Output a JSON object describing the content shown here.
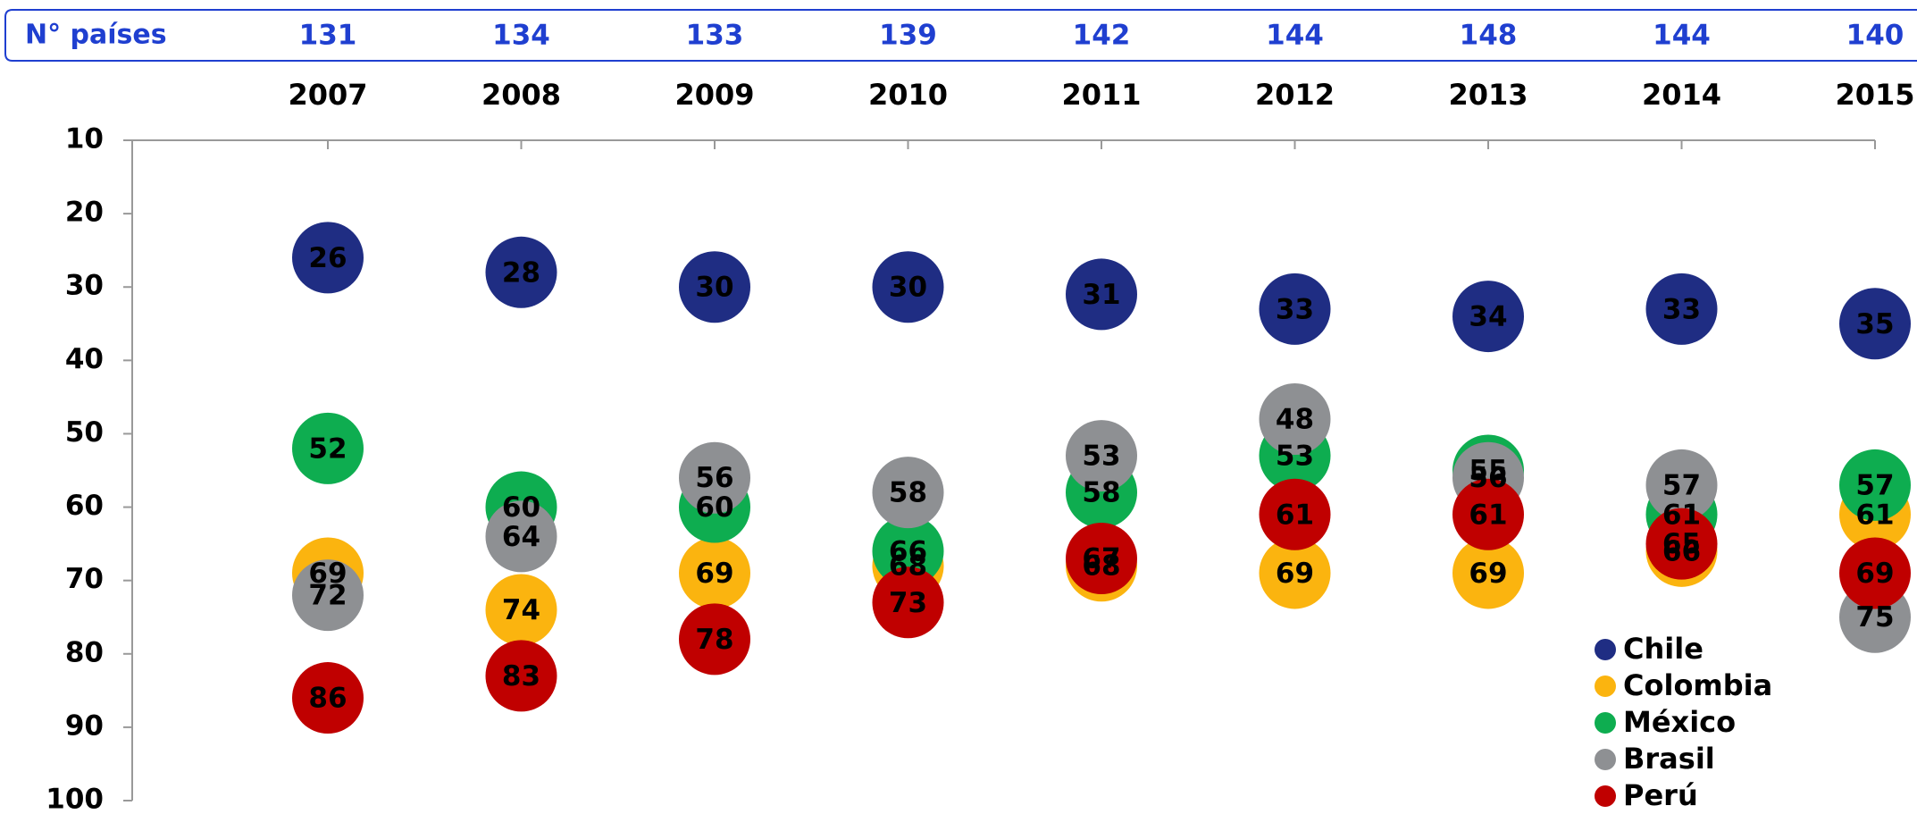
{
  "chart_data": {
    "type": "scatter",
    "count_label": "N° países",
    "counts": [
      131,
      134,
      133,
      139,
      142,
      144,
      148,
      144,
      140
    ],
    "categories": [
      "2007",
      "2008",
      "2009",
      "2010",
      "2011",
      "2012",
      "2013",
      "2014",
      "2015"
    ],
    "series": [
      {
        "name": "Chile",
        "color": "#1f2d83",
        "values": [
          26,
          28,
          30,
          30,
          31,
          33,
          34,
          33,
          35
        ]
      },
      {
        "name": "Colombia",
        "color": "#fbb40f",
        "values": [
          69,
          74,
          69,
          68,
          68,
          69,
          69,
          66,
          61
        ]
      },
      {
        "name": "México",
        "color": "#0ead50",
        "values": [
          52,
          60,
          60,
          66,
          58,
          53,
          55,
          61,
          57
        ]
      },
      {
        "name": "Brasil",
        "color": "#8e9093",
        "values": [
          72,
          64,
          56,
          58,
          53,
          48,
          56,
          57,
          75
        ]
      },
      {
        "name": "Perú",
        "color": "#c00000",
        "values": [
          86,
          83,
          78,
          73,
          67,
          61,
          61,
          65,
          69
        ]
      }
    ],
    "ylim": [
      10,
      100
    ],
    "yticks": [
      10,
      20,
      30,
      40,
      50,
      60,
      70,
      80,
      90,
      100
    ],
    "y_inverted": true,
    "legend": "lower right"
  }
}
